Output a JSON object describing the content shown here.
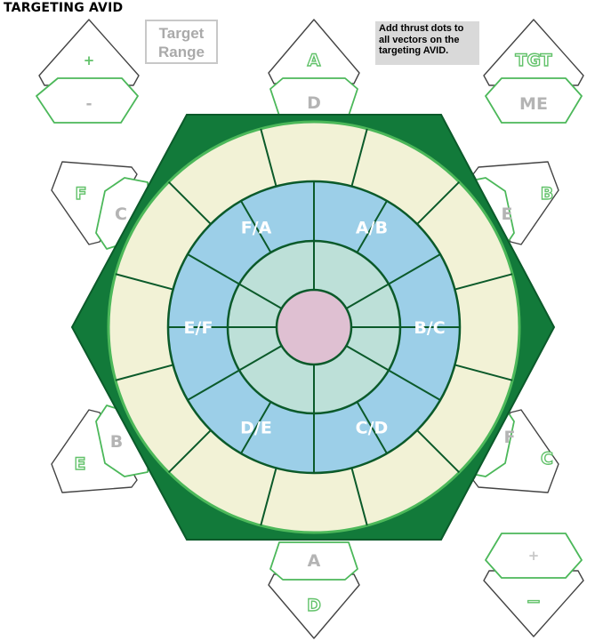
{
  "header": {
    "title": "TARGETING AVID"
  },
  "range_box": {
    "line1": "Target",
    "line2": "Range"
  },
  "note": {
    "text": "Add thrust dots to all vectors on the targeting AVID."
  },
  "top_left_control": {
    "plus": "+",
    "minus": "-"
  },
  "top_center_control": {
    "upper": "A",
    "lower": "D"
  },
  "top_right_control": {
    "upper": "TGT",
    "lower": "ME"
  },
  "left_upper_control": {
    "outer": "F",
    "inner": "C"
  },
  "right_upper_control": {
    "outer": "B",
    "inner": "E"
  },
  "left_lower_control": {
    "outer": "E",
    "inner": "B"
  },
  "right_lower_control": {
    "outer": "C",
    "inner": "F"
  },
  "bottom_center_control": {
    "upper": "A",
    "lower": "D"
  },
  "bottom_right_control": {
    "plus": "+",
    "minus": "−"
  },
  "avid": {
    "middle_ring_labels": [
      "A/B",
      "B/C",
      "C/D",
      "D/E",
      "E/F",
      "F/A"
    ]
  },
  "colors": {
    "hexagon": "#127a3a",
    "outer_ring": "#f2f2d6",
    "middle_ring": "#9ccfe8",
    "inner_ring": "#bde0d8",
    "center": "#dfc0d2",
    "green_outline": "#57b95f",
    "label_gray": "#b4b4b4"
  }
}
